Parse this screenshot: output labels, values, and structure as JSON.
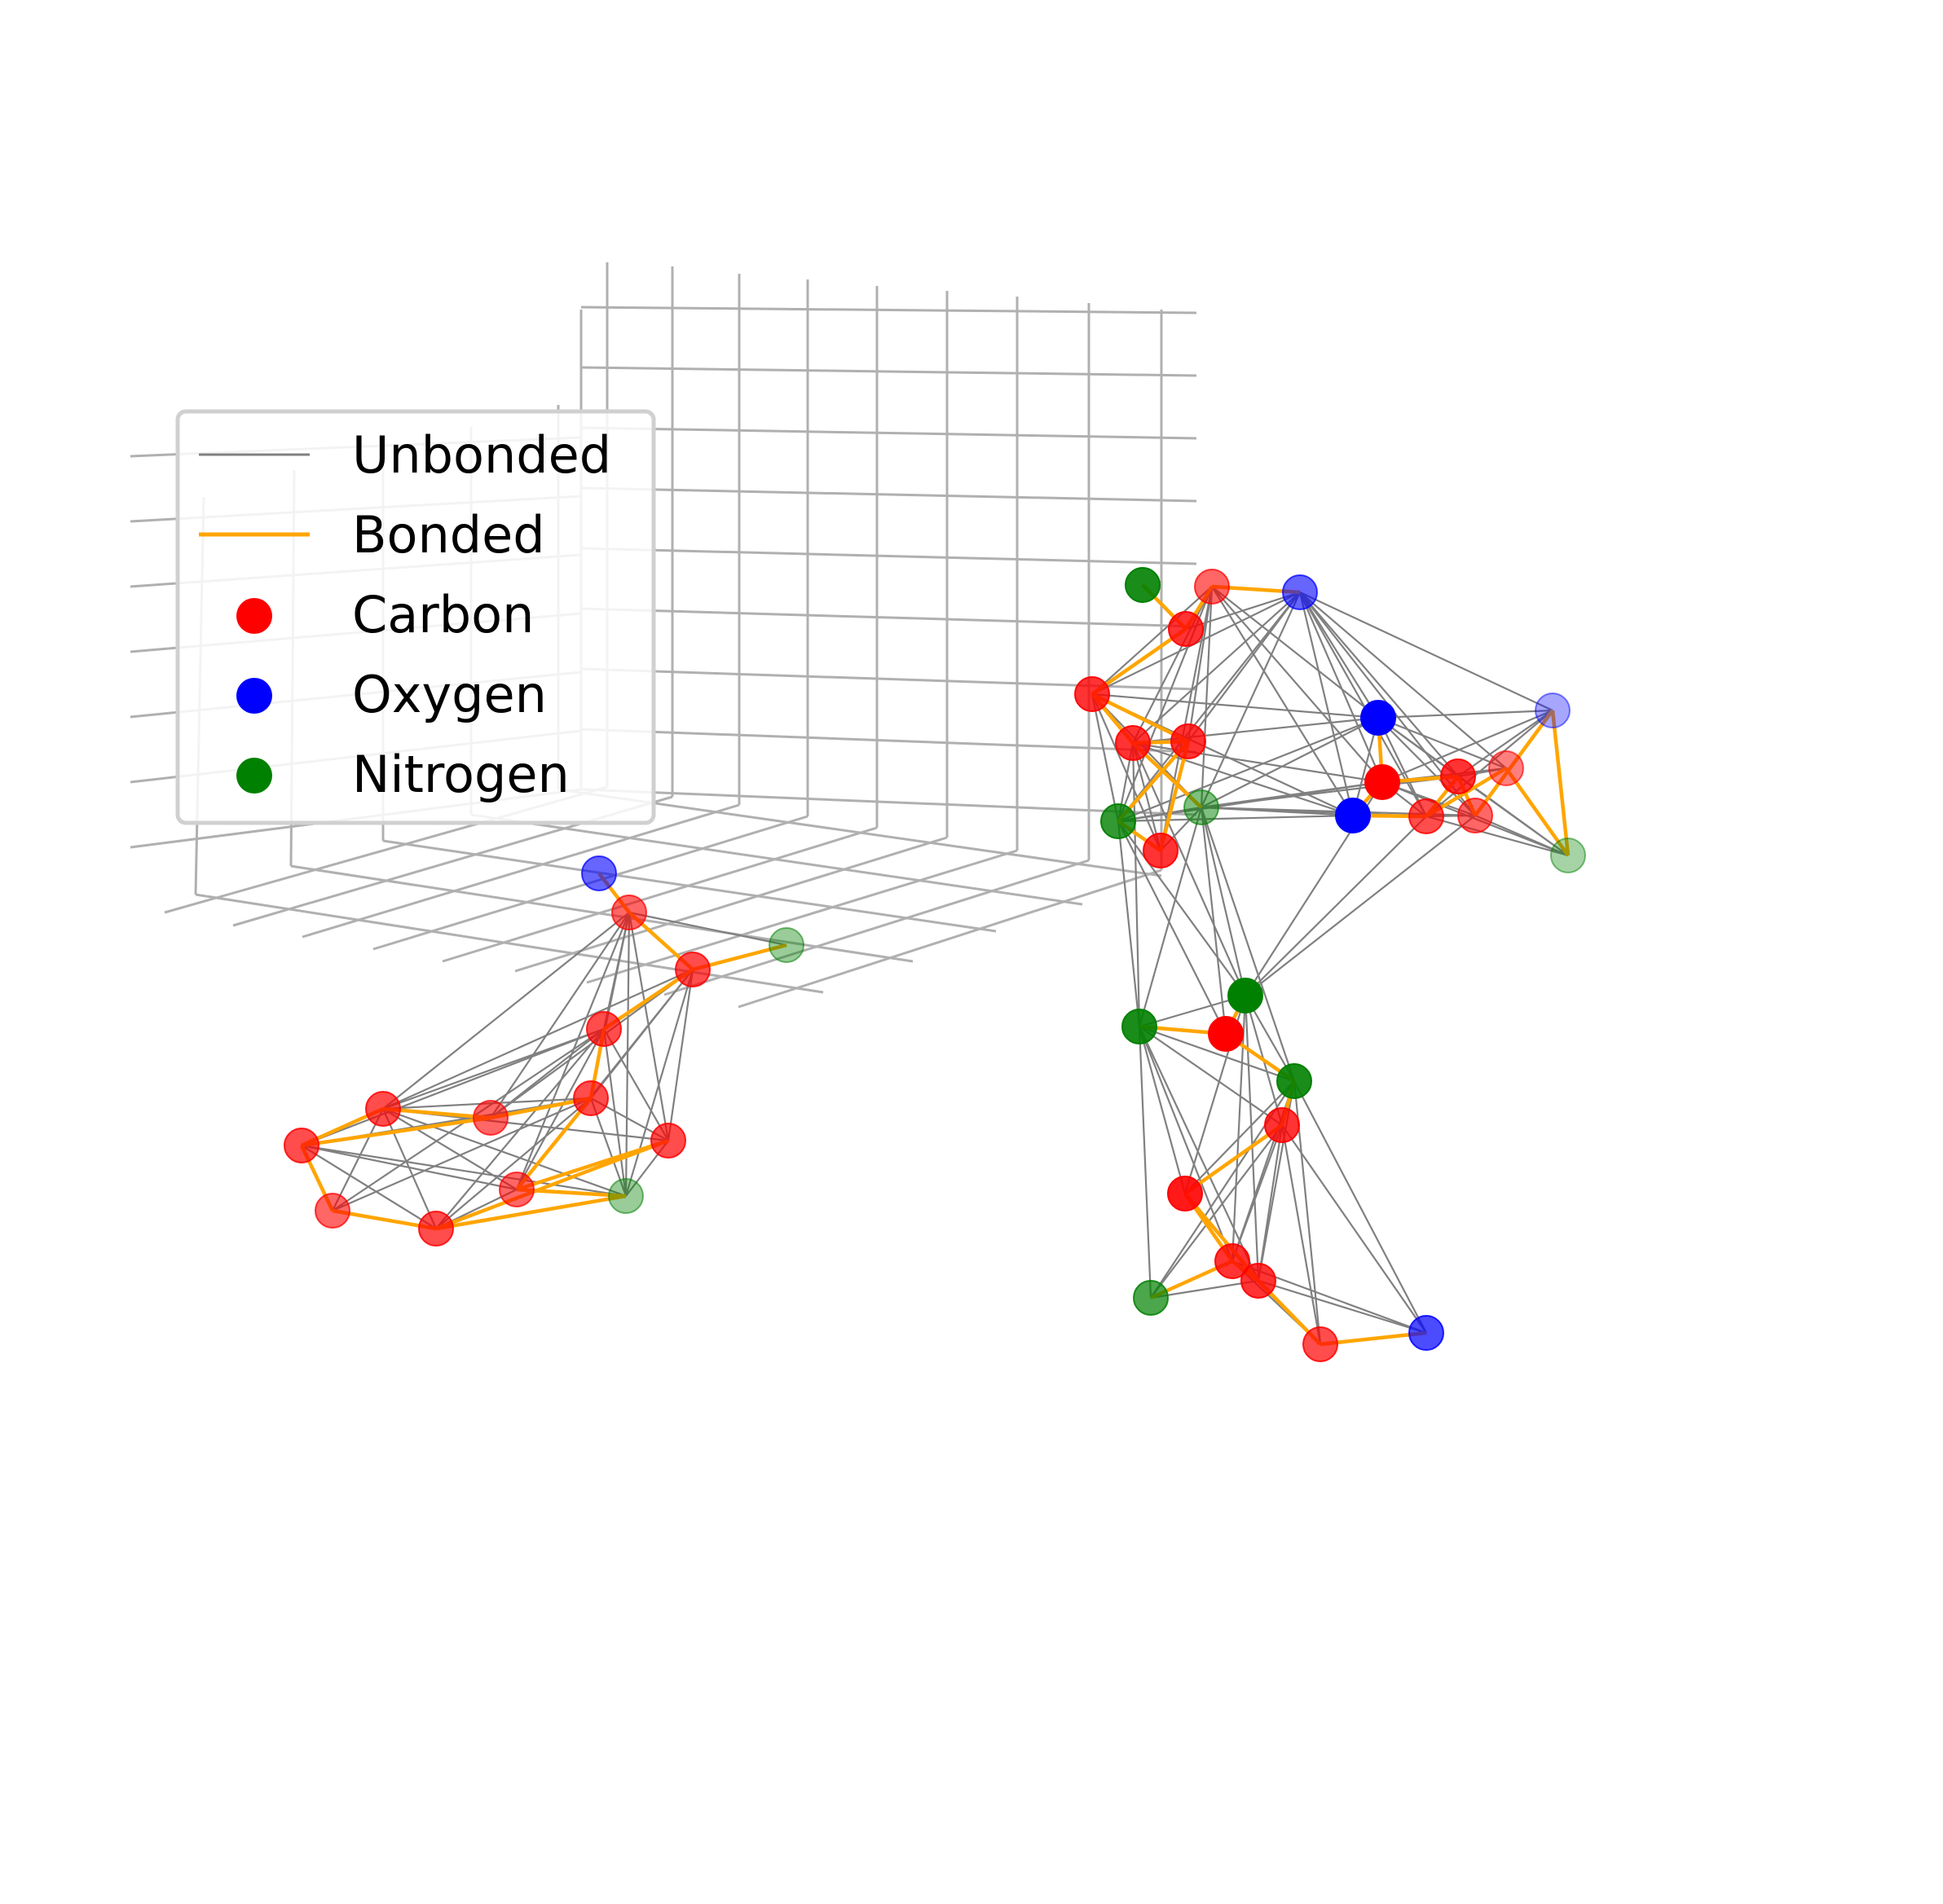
{
  "legend": {
    "unbonded": "Unbonded",
    "bonded": "Bonded",
    "carbon": "Carbon",
    "oxygen": "Oxygen",
    "nitrogen": "Nitrogen"
  },
  "colors": {
    "unbonded": "#808080",
    "bonded": "#FFA500",
    "carbon": "#FF0000",
    "oxygen": "#0000FF",
    "nitrogen": "#008000",
    "grid": "#b0b0b0"
  },
  "view": {
    "type": "3d-molecular-graph",
    "axes_visible": false,
    "grid": true
  },
  "molecules": [
    {
      "atoms": [
        {
          "el": "O",
          "depth": 0.6
        },
        {
          "el": "C",
          "depth": 0.6
        },
        {
          "el": "C",
          "depth": 0.7
        },
        {
          "el": "N",
          "depth": 0.4
        },
        {
          "el": "C",
          "depth": 0.7
        },
        {
          "el": "C",
          "depth": 0.7
        },
        {
          "el": "C",
          "depth": 0.6
        },
        {
          "el": "C",
          "depth": 0.7
        },
        {
          "el": "C",
          "depth": 0.7
        },
        {
          "el": "C",
          "depth": 0.6
        },
        {
          "el": "C",
          "depth": 0.6
        },
        {
          "el": "C",
          "depth": 0.7
        },
        {
          "el": "C",
          "depth": 0.7
        },
        {
          "el": "N",
          "depth": 0.4
        }
      ],
      "bonds": [
        [
          0,
          1
        ],
        [
          1,
          2
        ],
        [
          2,
          3
        ],
        [
          2,
          4
        ],
        [
          4,
          5
        ],
        [
          5,
          10
        ],
        [
          5,
          6
        ],
        [
          6,
          7
        ],
        [
          7,
          8
        ],
        [
          8,
          9
        ],
        [
          9,
          12
        ],
        [
          12,
          11
        ],
        [
          11,
          10
        ],
        [
          10,
          13
        ],
        [
          12,
          13
        ],
        [
          6,
          8
        ]
      ]
    },
    {
      "atoms": [
        {
          "el": "N",
          "depth": 0.9
        },
        {
          "el": "C",
          "depth": 0.6
        },
        {
          "el": "O",
          "depth": 0.6
        },
        {
          "el": "C",
          "depth": 0.8
        },
        {
          "el": "C",
          "depth": 0.8
        },
        {
          "el": "C",
          "depth": 0.8
        },
        {
          "el": "C",
          "depth": 0.8
        },
        {
          "el": "N",
          "depth": 0.8
        },
        {
          "el": "N",
          "depth": 0.5
        },
        {
          "el": "C",
          "depth": 0.8
        },
        {
          "el": "O",
          "depth": 1.0
        },
        {
          "el": "C",
          "depth": 1.0
        },
        {
          "el": "O",
          "depth": 1.0
        },
        {
          "el": "C",
          "depth": 0.8
        },
        {
          "el": "C",
          "depth": 0.7
        },
        {
          "el": "C",
          "depth": 0.5
        },
        {
          "el": "C",
          "depth": 0.6
        },
        {
          "el": "O",
          "depth": 0.35
        },
        {
          "el": "N",
          "depth": 0.35
        },
        {
          "el": "N",
          "depth": 1.0
        },
        {
          "el": "N",
          "depth": 0.9
        },
        {
          "el": "C",
          "depth": 1.0
        },
        {
          "el": "N",
          "depth": 0.9
        },
        {
          "el": "C",
          "depth": 0.8
        },
        {
          "el": "C",
          "depth": 0.9
        },
        {
          "el": "C",
          "depth": 0.8
        },
        {
          "el": "C",
          "depth": 0.8
        },
        {
          "el": "N",
          "depth": 0.7
        },
        {
          "el": "C",
          "depth": 0.7
        },
        {
          "el": "O",
          "depth": 0.7
        }
      ],
      "bonds": [
        [
          0,
          3
        ],
        [
          1,
          3
        ],
        [
          1,
          2
        ],
        [
          3,
          4
        ],
        [
          4,
          6
        ],
        [
          4,
          5
        ],
        [
          5,
          6
        ],
        [
          6,
          9
        ],
        [
          5,
          8
        ],
        [
          6,
          7
        ],
        [
          7,
          9
        ],
        [
          10,
          11
        ],
        [
          11,
          12
        ],
        [
          12,
          14
        ],
        [
          11,
          13
        ],
        [
          13,
          14
        ],
        [
          13,
          16
        ],
        [
          14,
          15
        ],
        [
          15,
          18
        ],
        [
          16,
          17
        ],
        [
          17,
          18
        ],
        [
          19,
          21
        ],
        [
          20,
          21
        ],
        [
          21,
          22
        ],
        [
          22,
          23
        ],
        [
          23,
          24
        ],
        [
          24,
          25
        ],
        [
          24,
          26
        ],
        [
          25,
          26
        ],
        [
          25,
          27
        ],
        [
          26,
          28
        ],
        [
          28,
          29
        ]
      ]
    }
  ]
}
